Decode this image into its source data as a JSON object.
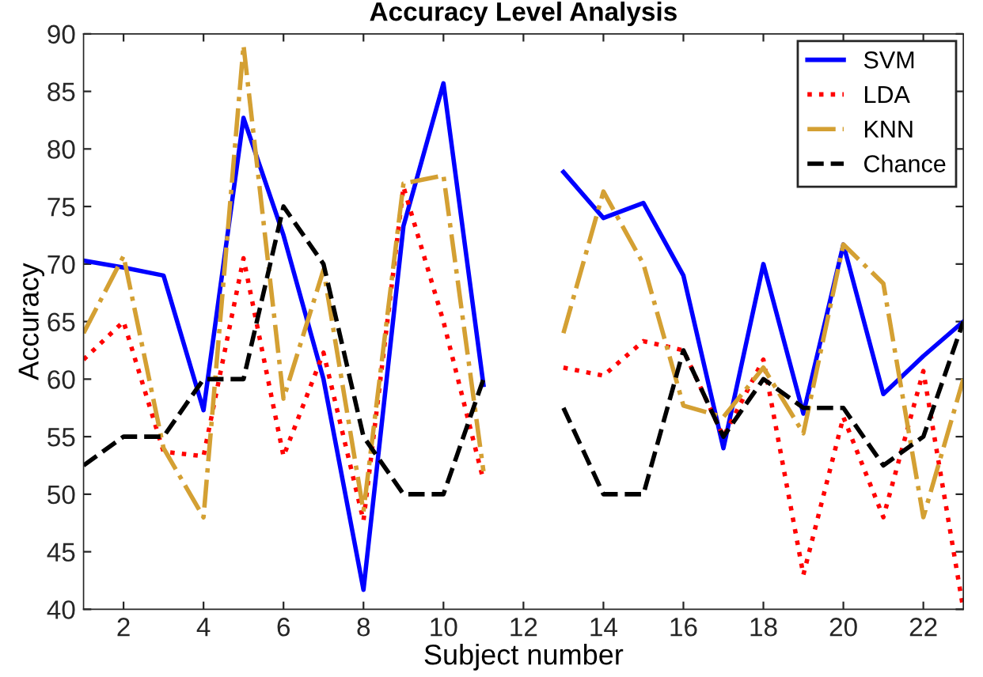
{
  "chart_data": {
    "type": "line",
    "title": "Accuracy Level Analysis",
    "xlabel": "Subject number",
    "ylabel": "Accuracy",
    "x": [
      1,
      2,
      3,
      4,
      5,
      6,
      7,
      8,
      9,
      10,
      11,
      12,
      13,
      14,
      15,
      16,
      17,
      18,
      19,
      20,
      21,
      22,
      23
    ],
    "series": [
      {
        "name": "SVM",
        "color": "#0000ff",
        "line_style": "solid",
        "values": [
          70.3,
          69.7,
          69.0,
          57.3,
          82.7,
          72.5,
          60,
          41.7,
          73.3,
          85.7,
          59.5,
          null,
          78,
          74,
          75.3,
          69,
          54,
          70,
          57,
          71.7,
          58.7,
          62,
          65
        ]
      },
      {
        "name": "LDA",
        "color": "#ff0000",
        "line_style": "dotted",
        "values": [
          61.7,
          65,
          53.7,
          53.3,
          70.5,
          53.3,
          62.3,
          47.7,
          76.7,
          65,
          51.2,
          null,
          61,
          60.3,
          63.3,
          62.5,
          55,
          61.7,
          43,
          56.7,
          48,
          60.7,
          40
        ]
      },
      {
        "name": "KNN",
        "color": "#d4a033",
        "line_style": "dashdot",
        "values": [
          64,
          70.7,
          54,
          48,
          89,
          58.3,
          69.5,
          48.5,
          77,
          77.7,
          52,
          null,
          64,
          76.3,
          70,
          57.7,
          56.7,
          61,
          55.3,
          71.7,
          68.3,
          48,
          60
        ]
      },
      {
        "name": "Chance",
        "color": "#000000",
        "line_style": "dashed",
        "values": [
          52.5,
          55,
          55,
          60,
          60,
          75,
          70,
          55,
          50,
          50,
          60,
          null,
          57.5,
          50,
          50,
          62.5,
          55,
          60,
          57.5,
          57.5,
          52.5,
          55,
          65
        ]
      }
    ],
    "xlim": [
      1,
      23
    ],
    "xticks": [
      2,
      4,
      6,
      8,
      10,
      12,
      14,
      16,
      18,
      20,
      22
    ],
    "ylim": [
      40,
      90
    ],
    "yticks": [
      40,
      45,
      50,
      55,
      60,
      65,
      70,
      75,
      80,
      85,
      90
    ],
    "legend": "top right",
    "grid": false
  }
}
